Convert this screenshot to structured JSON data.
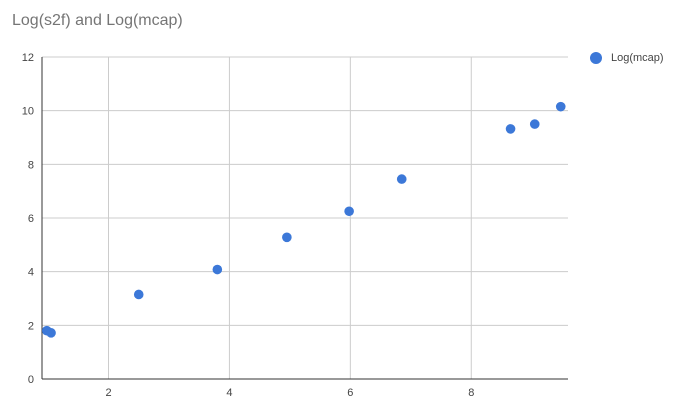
{
  "chart_data": {
    "type": "scatter",
    "title": "Log(s2f) and Log(mcap)",
    "xlabel": "",
    "ylabel": "",
    "xlim": [
      0.9,
      9.6
    ],
    "ylim": [
      0,
      12
    ],
    "x_ticks": [
      2,
      4,
      6,
      8
    ],
    "y_ticks": [
      0,
      2,
      4,
      6,
      8,
      10,
      12
    ],
    "grid": true,
    "legend_position": "top-right",
    "series": [
      {
        "name": "Log(mcap)",
        "color": "#3c78d8",
        "points": [
          {
            "x": 0.98,
            "y": 1.8
          },
          {
            "x": 1.05,
            "y": 1.72
          },
          {
            "x": 2.5,
            "y": 3.15
          },
          {
            "x": 3.8,
            "y": 4.08
          },
          {
            "x": 4.95,
            "y": 5.28
          },
          {
            "x": 5.98,
            "y": 6.25
          },
          {
            "x": 6.85,
            "y": 7.45
          },
          {
            "x": 8.65,
            "y": 9.32
          },
          {
            "x": 9.05,
            "y": 9.5
          },
          {
            "x": 9.48,
            "y": 10.15
          }
        ]
      }
    ]
  }
}
